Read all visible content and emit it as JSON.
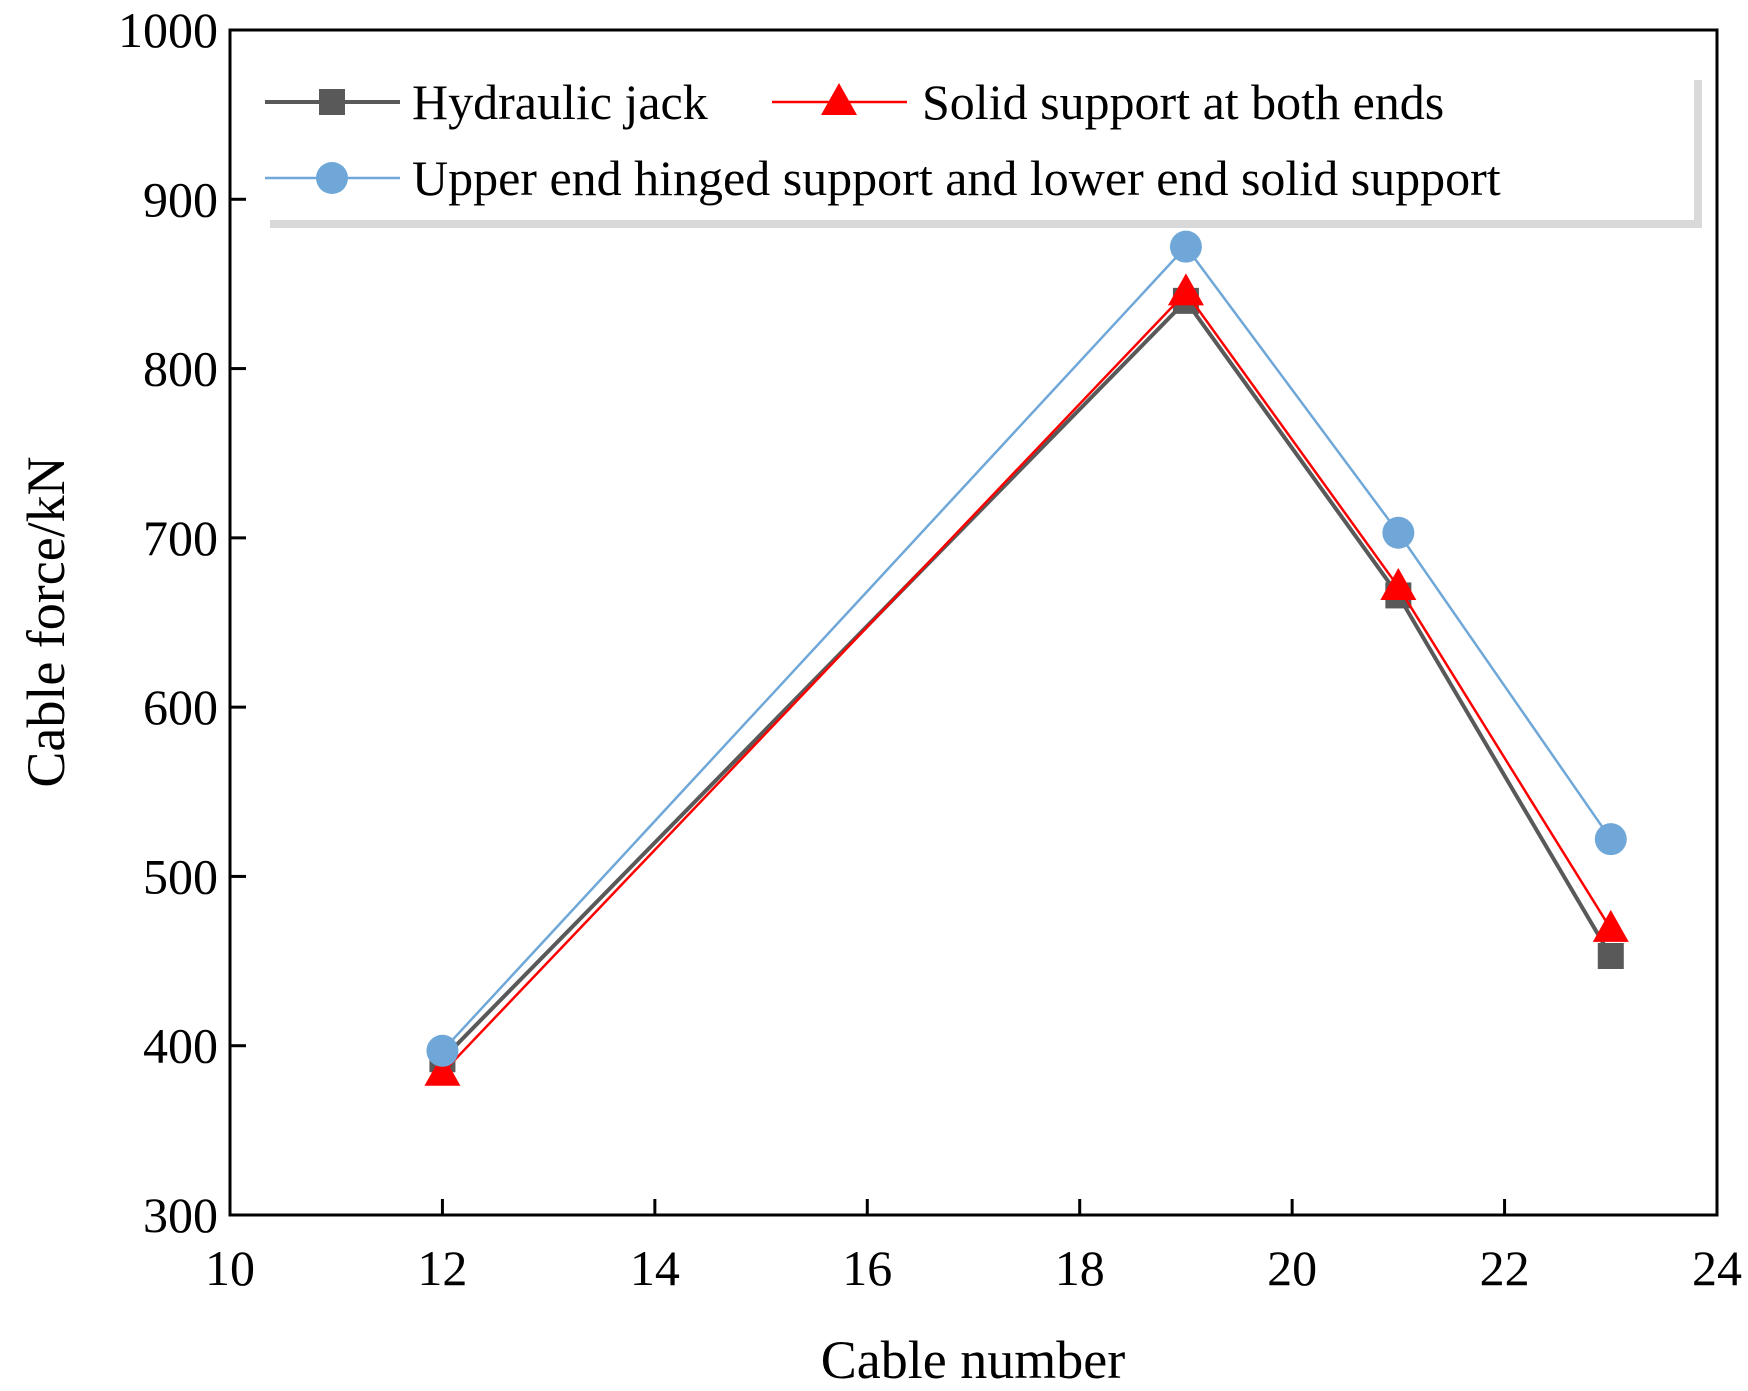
{
  "chart_data": {
    "type": "line",
    "title": "",
    "xlabel": "Cable number",
    "ylabel": "Cable force/kN",
    "xlim": [
      10,
      24
    ],
    "ylim": [
      300,
      1000
    ],
    "xticks": [
      10,
      12,
      14,
      16,
      18,
      20,
      22,
      24
    ],
    "yticks": [
      300,
      400,
      500,
      600,
      700,
      800,
      900,
      1000
    ],
    "x": [
      12,
      19,
      21,
      23
    ],
    "grid": false,
    "legend_position": "top",
    "series": [
      {
        "name": "Hydraulic jack",
        "values": [
          392,
          840,
          666,
          453
        ],
        "color": "#595959",
        "marker": "square"
      },
      {
        "name": "Solid support at both ends",
        "values": [
          384,
          845,
          671,
          469
        ],
        "color": "#ff0000",
        "marker": "triangle"
      },
      {
        "name": "Upper end hinged support and lower end solid support",
        "values": [
          397,
          872,
          703,
          522
        ],
        "color": "#6fa8d8",
        "marker": "circle"
      }
    ]
  }
}
